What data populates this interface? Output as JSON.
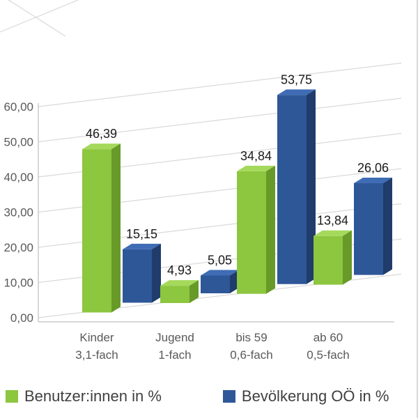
{
  "chart_data": {
    "type": "bar",
    "style": "3d-clustered-column",
    "title": "",
    "xlabel": "",
    "ylabel": "",
    "categories": [
      [
        "Kinder",
        "3,1-fach"
      ],
      [
        "Jugend",
        "1-fach"
      ],
      [
        "bis 59",
        "0,6-fach"
      ],
      [
        "ab 60",
        "0,5-fach"
      ]
    ],
    "series": [
      {
        "name": "Benutzer:innen in %",
        "values": [
          46.39,
          4.93,
          34.84,
          13.84
        ],
        "labels": [
          "46,39",
          "4,93",
          "34,84",
          "13,84"
        ],
        "color": "#8dc63f",
        "color_dark": "#679a28",
        "color_light": "#a4d95c"
      },
      {
        "name": "Bevölkerung OÖ in %",
        "values": [
          15.15,
          5.05,
          53.75,
          26.06
        ],
        "labels": [
          "15,15",
          "5,05",
          "53,75",
          "26,06"
        ],
        "color": "#2e5797",
        "color_dark": "#1f3c6b",
        "color_light": "#3f6cb5"
      }
    ],
    "y_axis": {
      "min": 0,
      "max": 60,
      "step": 10,
      "tick_labels": [
        "0,00",
        "10,00",
        "20,00",
        "30,00",
        "40,00",
        "50,00",
        "60,00"
      ]
    },
    "grid": true,
    "legend_position": "bottom",
    "colors": {
      "grid_line": "#d9d9d9",
      "axis_line": "#bfbfbf",
      "tick_text": "#595959",
      "value_text": "#1a1a1a",
      "legend_text": "#404040",
      "background": "#ffffff"
    }
  }
}
